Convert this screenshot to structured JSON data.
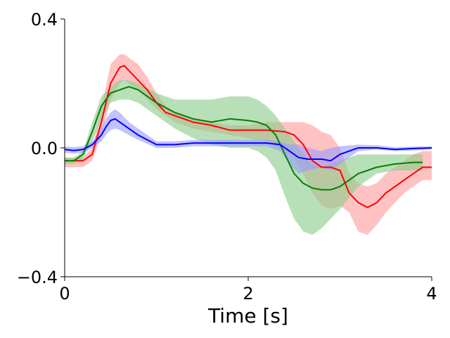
{
  "chart_data": {
    "type": "line",
    "title": "",
    "xlabel": "Time [s]",
    "ylabel": "",
    "xlim": [
      0,
      4
    ],
    "ylim": [
      -0.4,
      0.4
    ],
    "xticks": [
      0,
      2,
      4
    ],
    "xtick_labels": [
      "0",
      "2",
      "4"
    ],
    "yticks": [
      -0.4,
      0.0,
      0.4
    ],
    "ytick_labels": [
      "−0.4",
      "0.0",
      "0.4"
    ],
    "grid": false,
    "legend": "none",
    "series": [
      {
        "name": "red",
        "color": "#ff0000",
        "band_color": "#ff9999",
        "x": [
          0.0,
          0.1,
          0.2,
          0.3,
          0.4,
          0.5,
          0.6,
          0.65,
          0.7,
          0.8,
          0.9,
          1.0,
          1.1,
          1.2,
          1.4,
          1.6,
          1.8,
          2.0,
          2.2,
          2.4,
          2.5,
          2.6,
          2.7,
          2.8,
          2.9,
          3.0,
          3.1,
          3.2,
          3.3,
          3.4,
          3.5,
          3.6,
          3.7,
          3.8,
          3.9,
          4.0
        ],
        "y": [
          -0.04,
          -0.04,
          -0.04,
          -0.02,
          0.08,
          0.2,
          0.25,
          0.255,
          0.24,
          0.21,
          0.18,
          0.14,
          0.11,
          0.1,
          0.08,
          0.07,
          0.055,
          0.055,
          0.055,
          0.05,
          0.04,
          0.01,
          -0.04,
          -0.06,
          -0.06,
          -0.07,
          -0.14,
          -0.17,
          -0.185,
          -0.17,
          -0.14,
          -0.12,
          -0.1,
          -0.08,
          -0.06,
          -0.06
        ],
        "lower": [
          -0.06,
          -0.06,
          -0.06,
          -0.04,
          0.04,
          0.15,
          0.2,
          0.21,
          0.2,
          0.18,
          0.15,
          0.12,
          0.1,
          0.08,
          0.06,
          0.05,
          0.04,
          0.03,
          0.02,
          -0.01,
          -0.03,
          -0.08,
          -0.14,
          -0.18,
          -0.19,
          -0.18,
          -0.2,
          -0.26,
          -0.27,
          -0.24,
          -0.2,
          -0.17,
          -0.14,
          -0.12,
          -0.1,
          -0.1
        ],
        "upper": [
          -0.03,
          -0.03,
          -0.03,
          0.0,
          0.12,
          0.26,
          0.29,
          0.29,
          0.28,
          0.26,
          0.22,
          0.17,
          0.13,
          0.11,
          0.09,
          0.08,
          0.07,
          0.07,
          0.08,
          0.08,
          0.08,
          0.08,
          0.07,
          0.05,
          0.04,
          0.0,
          -0.08,
          -0.11,
          -0.12,
          -0.11,
          -0.08,
          -0.06,
          -0.04,
          -0.02,
          -0.01,
          -0.01
        ]
      },
      {
        "name": "green",
        "color": "#008000",
        "band_color": "#88cc88",
        "x": [
          0.0,
          0.1,
          0.2,
          0.3,
          0.4,
          0.5,
          0.6,
          0.7,
          0.8,
          1.0,
          1.2,
          1.4,
          1.6,
          1.8,
          2.0,
          2.1,
          2.2,
          2.3,
          2.4,
          2.5,
          2.6,
          2.7,
          2.8,
          2.9,
          3.0,
          3.2,
          3.4,
          3.6,
          3.8,
          3.9
        ],
        "y": [
          -0.04,
          -0.04,
          -0.02,
          0.05,
          0.13,
          0.17,
          0.18,
          0.19,
          0.18,
          0.14,
          0.11,
          0.09,
          0.08,
          0.09,
          0.085,
          0.08,
          0.07,
          0.04,
          -0.02,
          -0.08,
          -0.11,
          -0.125,
          -0.13,
          -0.13,
          -0.12,
          -0.08,
          -0.06,
          -0.05,
          -0.045,
          -0.045
        ],
        "lower": [
          -0.05,
          -0.05,
          -0.035,
          0.02,
          0.09,
          0.14,
          0.15,
          0.15,
          0.14,
          0.1,
          0.06,
          0.03,
          0.01,
          0.0,
          0.0,
          -0.01,
          -0.03,
          -0.07,
          -0.15,
          -0.22,
          -0.26,
          -0.27,
          -0.25,
          -0.22,
          -0.19,
          -0.12,
          -0.08,
          -0.07,
          -0.07,
          -0.07
        ],
        "upper": [
          -0.03,
          -0.03,
          -0.01,
          0.08,
          0.16,
          0.19,
          0.21,
          0.21,
          0.2,
          0.17,
          0.15,
          0.15,
          0.15,
          0.16,
          0.16,
          0.15,
          0.13,
          0.1,
          0.06,
          0.02,
          -0.02,
          -0.05,
          -0.06,
          -0.05,
          -0.04,
          -0.02,
          -0.02,
          -0.02,
          -0.02,
          -0.02
        ]
      },
      {
        "name": "blue",
        "color": "#0000ff",
        "band_color": "#9999ff",
        "x": [
          0.0,
          0.1,
          0.2,
          0.3,
          0.4,
          0.45,
          0.5,
          0.55,
          0.6,
          0.7,
          0.8,
          1.0,
          1.2,
          1.4,
          1.6,
          1.8,
          2.0,
          2.2,
          2.35,
          2.45,
          2.55,
          2.65,
          2.8,
          2.9,
          3.0,
          3.2,
          3.4,
          3.6,
          3.8,
          4.0
        ],
        "y": [
          -0.005,
          -0.008,
          -0.005,
          0.01,
          0.04,
          0.065,
          0.085,
          0.09,
          0.08,
          0.06,
          0.04,
          0.01,
          0.01,
          0.015,
          0.015,
          0.015,
          0.015,
          0.015,
          0.01,
          -0.01,
          -0.03,
          -0.035,
          -0.035,
          -0.04,
          -0.02,
          0.0,
          0.0,
          -0.005,
          -0.002,
          0.0
        ],
        "lower": [
          -0.015,
          -0.018,
          -0.015,
          0.0,
          0.02,
          0.04,
          0.055,
          0.06,
          0.055,
          0.04,
          0.025,
          0.0,
          0.0,
          0.005,
          0.005,
          0.005,
          0.005,
          0.005,
          -0.01,
          -0.05,
          -0.08,
          -0.07,
          -0.06,
          -0.07,
          -0.05,
          -0.01,
          -0.005,
          -0.01,
          -0.008,
          -0.005
        ],
        "upper": [
          0.005,
          0.002,
          0.005,
          0.02,
          0.06,
          0.09,
          0.11,
          0.12,
          0.11,
          0.08,
          0.06,
          0.02,
          0.02,
          0.025,
          0.025,
          0.025,
          0.025,
          0.025,
          0.02,
          0.01,
          0.01,
          0.0,
          -0.01,
          0.0,
          0.005,
          0.01,
          0.008,
          0.002,
          0.004,
          0.005
        ]
      }
    ]
  }
}
